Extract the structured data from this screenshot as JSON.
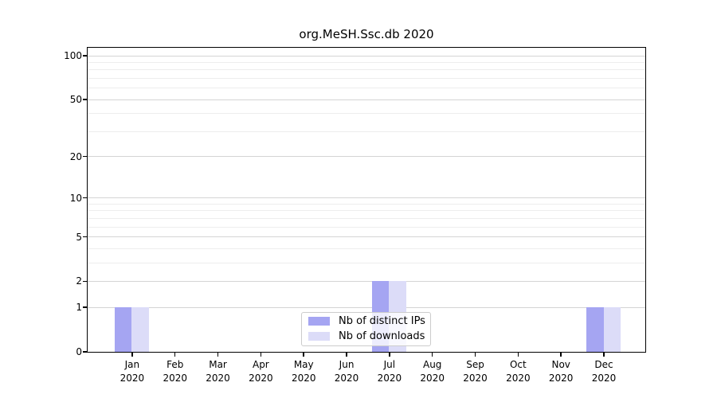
{
  "chart_data": {
    "type": "bar",
    "title": "org.MeSH.Ssc.db 2020",
    "categories": [
      "Jan",
      "Feb",
      "Mar",
      "Apr",
      "May",
      "Jun",
      "Jul",
      "Aug",
      "Sep",
      "Oct",
      "Nov",
      "Dec"
    ],
    "year_label": "2020",
    "series": [
      {
        "name": "Nb of distinct IPs",
        "color": "#a5a5f2",
        "values": [
          1,
          0,
          0,
          0,
          0,
          0,
          2,
          0,
          0,
          0,
          0,
          1
        ]
      },
      {
        "name": "Nb of downloads",
        "color": "#dcdcf8",
        "values": [
          1,
          0,
          0,
          0,
          0,
          0,
          2,
          0,
          0,
          0,
          0,
          1
        ]
      }
    ],
    "y_axis": {
      "scale": "log1p",
      "ticks": [
        0,
        1,
        2,
        5,
        10,
        20,
        50,
        100
      ],
      "minor_ticks": [
        3,
        4,
        6,
        7,
        8,
        9,
        30,
        40,
        60,
        70,
        80,
        90
      ],
      "max": 100
    },
    "grid": {
      "major_color": "#d4d4d4",
      "minor_color": "#ededed"
    },
    "legend": {
      "position": "bottom-center",
      "border_color": "#cccccc"
    }
  }
}
